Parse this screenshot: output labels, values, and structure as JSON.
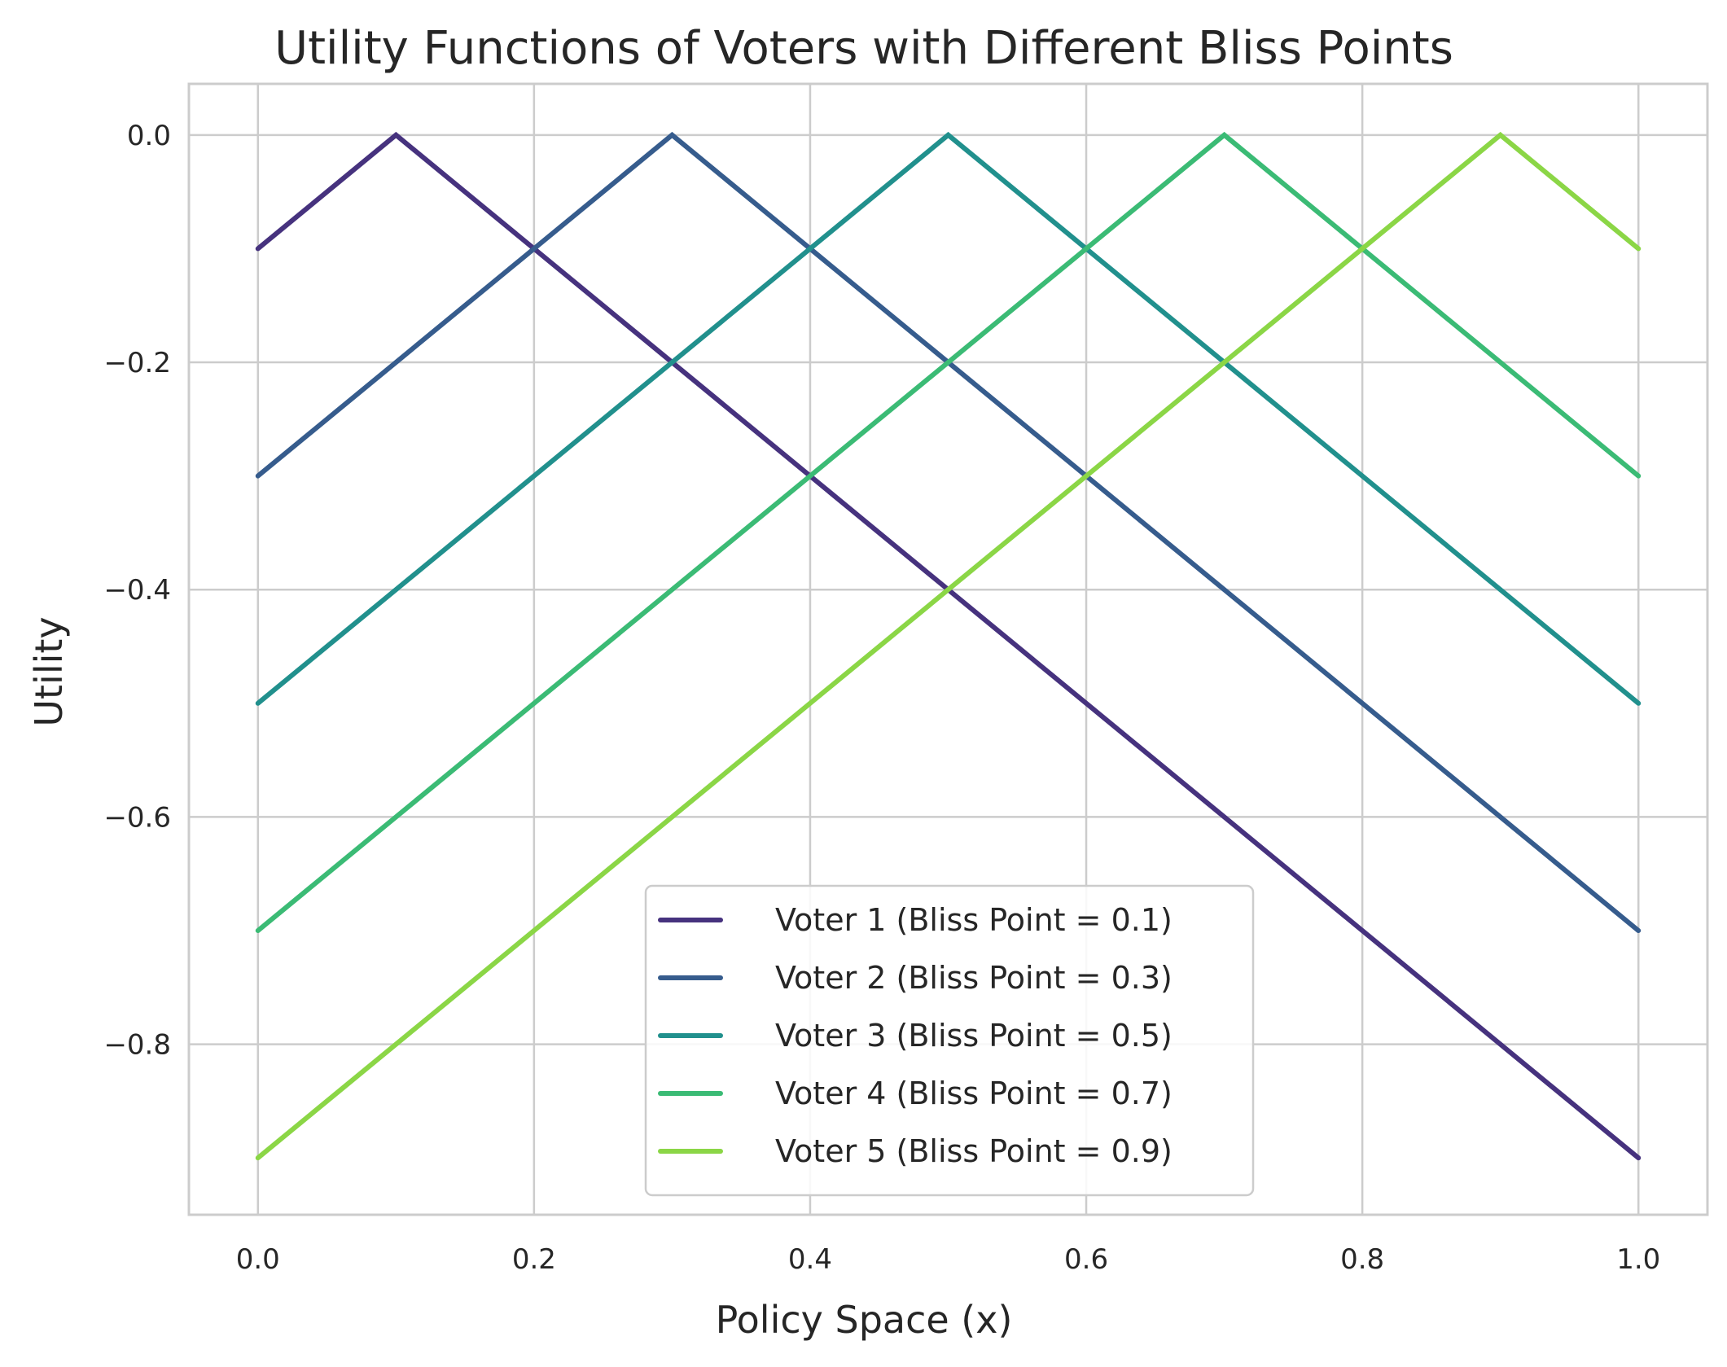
{
  "chart_data": {
    "type": "line",
    "title": "Utility Functions of Voters with Different Bliss Points",
    "xlabel": "Policy Space (x)",
    "ylabel": "Utility",
    "xlim": [
      -0.05,
      1.05
    ],
    "ylim": [
      -0.95,
      0.045
    ],
    "x_ticks": [
      0.0,
      0.2,
      0.4,
      0.6,
      0.8,
      1.0
    ],
    "x_tick_labels": [
      "0.0",
      "0.2",
      "0.4",
      "0.6",
      "0.8",
      "1.0"
    ],
    "y_ticks": [
      0.0,
      -0.2,
      -0.4,
      -0.6,
      -0.8
    ],
    "y_tick_labels": [
      "0.0",
      "−0.2",
      "−0.4",
      "−0.6",
      "−0.8"
    ],
    "grid": true,
    "legend_position": "lower-center",
    "series": [
      {
        "name": "Voter 1 (Bliss Point = 0.1)",
        "color": "#46327e",
        "x": [
          0.0,
          0.1,
          1.0
        ],
        "y": [
          -0.1,
          0.0,
          -0.9
        ]
      },
      {
        "name": "Voter 2 (Bliss Point = 0.3)",
        "color": "#365c8d",
        "x": [
          0.0,
          0.3,
          1.0
        ],
        "y": [
          -0.3,
          0.0,
          -0.7
        ]
      },
      {
        "name": "Voter 3 (Bliss Point = 0.5)",
        "color": "#21908d",
        "x": [
          0.0,
          0.5,
          1.0
        ],
        "y": [
          -0.5,
          0.0,
          -0.5
        ]
      },
      {
        "name": "Voter 4 (Bliss Point = 0.7)",
        "color": "#3bbb75",
        "x": [
          0.0,
          0.7,
          1.0
        ],
        "y": [
          -0.7,
          0.0,
          -0.3
        ]
      },
      {
        "name": "Voter 5 (Bliss Point = 0.9)",
        "color": "#8bd646",
        "x": [
          0.0,
          0.9,
          1.0
        ],
        "y": [
          -0.9,
          0.0,
          -0.1
        ]
      }
    ]
  }
}
